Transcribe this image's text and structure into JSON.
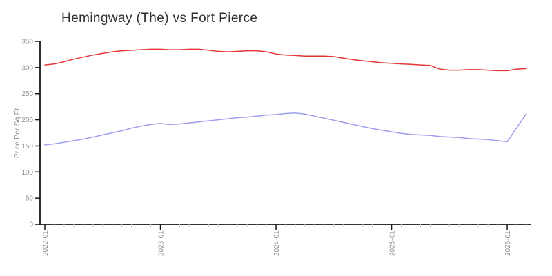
{
  "title": "Hemingway (The) vs Fort Pierce",
  "colors": {
    "axis": "#161616",
    "tick_label": "#8c8c8c",
    "minor_tick": "#cccccc",
    "title_text": "#2f2f2f",
    "series_red": "#e23636",
    "series_blue": "#9e9ef0"
  },
  "chart_data": {
    "type": "line",
    "title": "Hemingway (The) vs Fort Pierce",
    "xlabel": "",
    "ylabel": "Price Per Sq Ft",
    "ylim": [
      0,
      350
    ],
    "yticks": [
      0,
      50,
      100,
      150,
      200,
      250,
      300,
      350
    ],
    "xtick_labels": [
      "2022-01",
      "2023-01",
      "2024-01",
      "2025-01",
      "2026-01"
    ],
    "grid": false,
    "legend": "none",
    "x": [
      "2022-01",
      "2022-02",
      "2022-03",
      "2022-04",
      "2022-05",
      "2022-06",
      "2022-07",
      "2022-08",
      "2022-09",
      "2022-10",
      "2022-11",
      "2022-12",
      "2023-01",
      "2023-02",
      "2023-03",
      "2023-04",
      "2023-05",
      "2023-06",
      "2023-07",
      "2023-08",
      "2023-09",
      "2023-10",
      "2023-11",
      "2023-12",
      "2024-01",
      "2024-02",
      "2024-03",
      "2024-04",
      "2024-05",
      "2024-06",
      "2024-07",
      "2024-08",
      "2024-09",
      "2024-10",
      "2024-11",
      "2024-12",
      "2025-01",
      "2025-02",
      "2025-03",
      "2025-04",
      "2025-05",
      "2025-06",
      "2025-07",
      "2025-08",
      "2025-09",
      "2025-10",
      "2025-11",
      "2025-12",
      "2026-01",
      "2026-02",
      "2026-03"
    ],
    "series": [
      {
        "name": "Hemingway (The)",
        "color": "#e23636",
        "values": [
          305,
          307,
          311,
          316,
          320,
          324,
          327,
          330,
          332,
          333,
          334,
          335,
          335,
          334,
          334,
          335,
          335,
          333,
          331,
          330,
          331,
          332,
          332,
          330,
          326,
          324,
          323,
          322,
          322,
          322,
          321,
          318,
          315,
          313,
          311,
          309,
          308,
          307,
          306,
          305,
          304,
          297,
          295,
          295,
          296,
          296,
          295,
          294,
          294,
          297,
          298
        ]
      },
      {
        "name": "Fort Pierce",
        "color": "#9e9ef0",
        "values": [
          152,
          154,
          157,
          160,
          163,
          167,
          171,
          175,
          179,
          184,
          188,
          191,
          193,
          191,
          192,
          194,
          196,
          198,
          200,
          202,
          204,
          205,
          207,
          209,
          210,
          212,
          213,
          211,
          207,
          203,
          199,
          195,
          191,
          187,
          183,
          180,
          177,
          174,
          172,
          171,
          170,
          168,
          167,
          166,
          164,
          163,
          162,
          160,
          158,
          185,
          212
        ]
      }
    ]
  }
}
